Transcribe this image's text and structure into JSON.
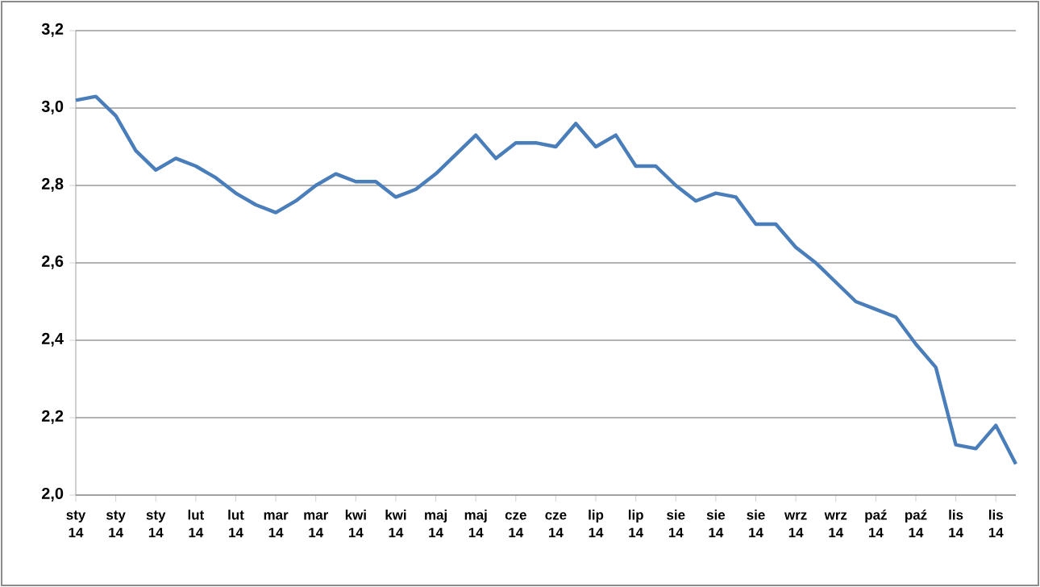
{
  "chart_data": {
    "type": "line",
    "categories": [
      "sty 14",
      null,
      "sty 14",
      null,
      "sty 14",
      null,
      "lut 14",
      null,
      "lut 14",
      null,
      "mar 14",
      null,
      "mar 14",
      null,
      "kwi 14",
      null,
      "kwi 14",
      null,
      "maj 14",
      null,
      "maj 14",
      null,
      "cze 14",
      null,
      "cze 14",
      null,
      "lip 14",
      null,
      "lip 14",
      null,
      "sie 14",
      null,
      "sie 14",
      null,
      "sie 14",
      null,
      "wrz 14",
      null,
      "wrz 14",
      null,
      "paź 14",
      null,
      "paź 14",
      null,
      "lis 14",
      null,
      "lis 14",
      null
    ],
    "series": [
      {
        "color": "#4a7ebb",
        "values": [
          3.02,
          3.03,
          2.98,
          2.89,
          2.84,
          2.87,
          2.85,
          2.82,
          2.78,
          2.75,
          2.73,
          2.76,
          2.8,
          2.83,
          2.81,
          2.81,
          2.77,
          2.79,
          2.83,
          2.88,
          2.93,
          2.87,
          2.91,
          2.91,
          2.9,
          2.96,
          2.9,
          2.93,
          2.85,
          2.85,
          2.8,
          2.76,
          2.78,
          2.77,
          2.7,
          2.7,
          2.64,
          2.6,
          2.55,
          2.5,
          2.48,
          2.46,
          2.39,
          2.33,
          2.13,
          2.12,
          2.18,
          2.08
        ]
      }
    ],
    "ylim": [
      2.0,
      3.2
    ],
    "yticks": [
      {
        "value": 2.0,
        "label": "2,0"
      },
      {
        "value": 2.2,
        "label": "2,2"
      },
      {
        "value": 2.4,
        "label": "2,4"
      },
      {
        "value": 2.6,
        "label": "2,6"
      },
      {
        "value": 2.8,
        "label": "2,8"
      },
      {
        "value": 3.0,
        "label": "3,0"
      },
      {
        "value": 3.2,
        "label": "3,2"
      }
    ],
    "grid": "y",
    "marker": "none",
    "line_style": "solid"
  }
}
